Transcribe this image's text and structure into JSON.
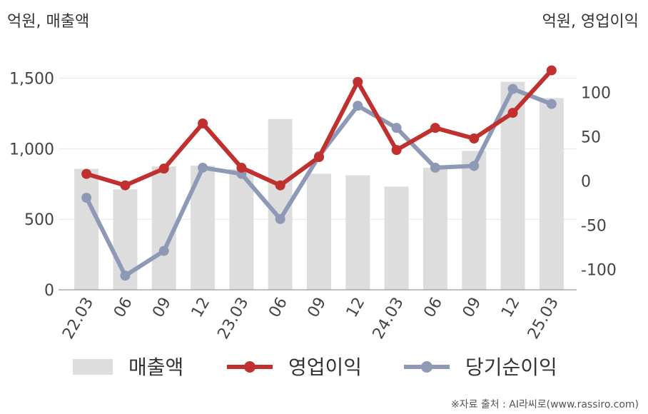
{
  "chart_data": {
    "type": "bar",
    "categories": [
      "22.03",
      "06",
      "09",
      "12",
      "23.03",
      "06",
      "09",
      "12",
      "24.03",
      "06",
      "09",
      "12",
      "25.03"
    ],
    "left_axis": {
      "unit_label": "억원, 매출액",
      "ylim": [
        0,
        1650
      ],
      "ticks": [
        "0",
        "500",
        "1,000",
        "1,500"
      ],
      "tick_values": [
        0,
        500,
        1000,
        1500
      ]
    },
    "right_axis": {
      "unit_label": "억원, 영업이익",
      "ylim": [
        -123,
        140
      ],
      "ticks": [
        "-100",
        "-50",
        "0",
        "50",
        "100"
      ],
      "tick_values": [
        -100,
        -50,
        0,
        50,
        100
      ]
    },
    "series": [
      {
        "name": "매출액",
        "type": "bar",
        "axis": "left",
        "color": "#dddddd",
        "values": [
          858,
          712,
          875,
          880,
          855,
          1210,
          823,
          812,
          732,
          865,
          985,
          1475,
          1360
        ]
      },
      {
        "name": "영업이익",
        "type": "line",
        "axis": "right",
        "color": "#c0302e",
        "values": [
          8,
          -5,
          14,
          65,
          15,
          -5,
          27,
          112,
          35,
          60,
          48,
          77,
          125
        ]
      },
      {
        "name": "당기순이익",
        "type": "line",
        "axis": "right",
        "color": "#8e9ab5",
        "values": [
          -19,
          -107,
          -79,
          15,
          8,
          -43,
          28,
          85,
          60,
          15,
          17,
          104,
          87
        ]
      }
    ],
    "grid": true,
    "legend_position": "bottom"
  },
  "source": "※자료 출처 : AI라씨로(www.rassiro.com)"
}
